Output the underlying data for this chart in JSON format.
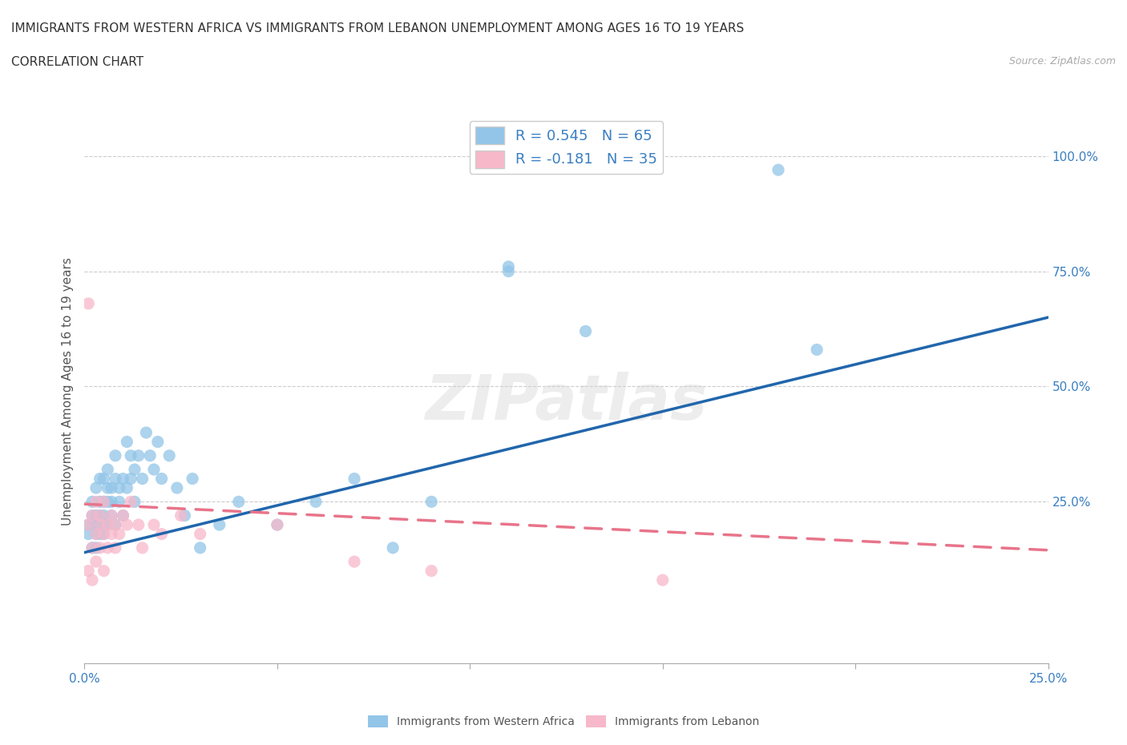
{
  "title_line1": "IMMIGRANTS FROM WESTERN AFRICA VS IMMIGRANTS FROM LEBANON UNEMPLOYMENT AMONG AGES 16 TO 19 YEARS",
  "title_line2": "CORRELATION CHART",
  "source_text": "Source: ZipAtlas.com",
  "ylabel": "Unemployment Among Ages 16 to 19 years",
  "blue_R": 0.545,
  "blue_N": 65,
  "pink_R": -0.181,
  "pink_N": 35,
  "blue_color": "#92c5e8",
  "pink_color": "#f7b8ca",
  "blue_line_color": "#2166ac",
  "pink_line_color": "#e8748a",
  "watermark": "ZIPatlas",
  "xlim": [
    0.0,
    0.25
  ],
  "ylim": [
    -0.1,
    1.08
  ],
  "yticks_right": [
    0.25,
    0.5,
    0.75,
    1.0
  ],
  "ytick_right_labels": [
    "25.0%",
    "50.0%",
    "75.0%",
    "100.0%"
  ],
  "blue_scatter_x": [
    0.001,
    0.001,
    0.002,
    0.002,
    0.002,
    0.002,
    0.003,
    0.003,
    0.003,
    0.003,
    0.003,
    0.004,
    0.004,
    0.004,
    0.004,
    0.004,
    0.005,
    0.005,
    0.005,
    0.005,
    0.005,
    0.006,
    0.006,
    0.006,
    0.006,
    0.007,
    0.007,
    0.007,
    0.008,
    0.008,
    0.008,
    0.009,
    0.009,
    0.01,
    0.01,
    0.011,
    0.011,
    0.012,
    0.012,
    0.013,
    0.013,
    0.014,
    0.015,
    0.016,
    0.017,
    0.018,
    0.019,
    0.02,
    0.022,
    0.024,
    0.026,
    0.028,
    0.03,
    0.035,
    0.04,
    0.05,
    0.06,
    0.07,
    0.08,
    0.09,
    0.11,
    0.11,
    0.13,
    0.18,
    0.19
  ],
  "blue_scatter_y": [
    0.2,
    0.18,
    0.22,
    0.15,
    0.25,
    0.2,
    0.18,
    0.22,
    0.28,
    0.2,
    0.15,
    0.25,
    0.2,
    0.3,
    0.18,
    0.22,
    0.25,
    0.2,
    0.3,
    0.18,
    0.22,
    0.28,
    0.2,
    0.25,
    0.32,
    0.22,
    0.28,
    0.25,
    0.3,
    0.2,
    0.35,
    0.25,
    0.28,
    0.3,
    0.22,
    0.38,
    0.28,
    0.35,
    0.3,
    0.32,
    0.25,
    0.35,
    0.3,
    0.4,
    0.35,
    0.32,
    0.38,
    0.3,
    0.35,
    0.28,
    0.22,
    0.3,
    0.15,
    0.2,
    0.25,
    0.2,
    0.25,
    0.3,
    0.15,
    0.25,
    0.75,
    0.76,
    0.62,
    0.97,
    0.58
  ],
  "pink_scatter_x": [
    0.001,
    0.001,
    0.002,
    0.002,
    0.002,
    0.003,
    0.003,
    0.003,
    0.004,
    0.004,
    0.004,
    0.005,
    0.005,
    0.005,
    0.006,
    0.006,
    0.007,
    0.007,
    0.008,
    0.008,
    0.009,
    0.01,
    0.011,
    0.012,
    0.014,
    0.015,
    0.018,
    0.02,
    0.025,
    0.03,
    0.05,
    0.07,
    0.09,
    0.15,
    0.001
  ],
  "pink_scatter_y": [
    0.2,
    0.1,
    0.22,
    0.15,
    0.08,
    0.18,
    0.25,
    0.12,
    0.2,
    0.15,
    0.22,
    0.18,
    0.1,
    0.25,
    0.2,
    0.15,
    0.22,
    0.18,
    0.2,
    0.15,
    0.18,
    0.22,
    0.2,
    0.25,
    0.2,
    0.15,
    0.2,
    0.18,
    0.22,
    0.18,
    0.2,
    0.12,
    0.1,
    0.08,
    0.68
  ],
  "blue_line_x0": 0.0,
  "blue_line_x1": 0.25,
  "blue_line_y0": 0.14,
  "blue_line_y1": 0.65,
  "pink_line_x0": 0.0,
  "pink_line_x1": 0.25,
  "pink_line_y0": 0.245,
  "pink_line_y1": 0.145
}
